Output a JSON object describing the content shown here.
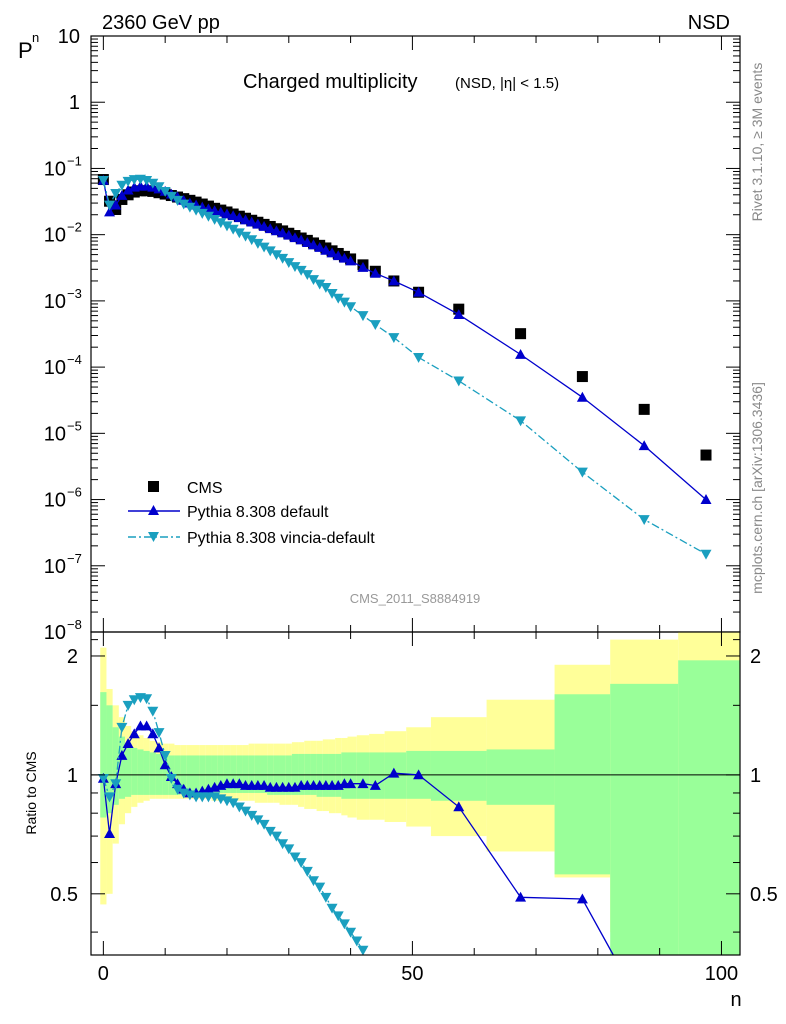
{
  "header": {
    "left": "2360 GeV pp",
    "right": "NSD"
  },
  "side_text": {
    "rivet": "Rivet 3.1.10, ≥ 3M events",
    "mcplots": "mcplots.cern.ch [arXiv:1306.3436]"
  },
  "watermark": "CMS_2011_S8884919",
  "chart_data": [
    {
      "type": "scatter",
      "title": "Charged multiplicity",
      "subtitle": "(NSD, |η| < 1.5)",
      "ylabel": "P",
      "ylabel_sub": "n",
      "y_scale": "log",
      "ylim": [
        1e-08,
        10
      ],
      "y_ticks": [
        {
          "v": 10,
          "t": "10"
        },
        {
          "v": 1,
          "t": "1"
        },
        {
          "v": 0.1,
          "t": "10",
          "e": "−1"
        },
        {
          "v": 0.01,
          "t": "10",
          "e": "−2"
        },
        {
          "v": 0.001,
          "t": "10",
          "e": "−3"
        },
        {
          "v": 0.0001,
          "t": "10",
          "e": "−4"
        },
        {
          "v": 1e-05,
          "t": "10",
          "e": "−5"
        },
        {
          "v": 1e-06,
          "t": "10",
          "e": "−6"
        },
        {
          "v": 1e-07,
          "t": "10",
          "e": "−7"
        },
        {
          "v": 1e-08,
          "t": "10",
          "e": "−8"
        }
      ],
      "xlim": [
        -2,
        103
      ],
      "legend_position": "bottom-left",
      "series": [
        {
          "name": "CMS",
          "marker": "square",
          "color": "#000000",
          "x": [
            0,
            1,
            2,
            3,
            4,
            5,
            6,
            7,
            8,
            9,
            10,
            11,
            12,
            13,
            14,
            15,
            16,
            17,
            18,
            19,
            20,
            21,
            22,
            23,
            24,
            25,
            26,
            27,
            28,
            29,
            30,
            31,
            32,
            33,
            34,
            35,
            36,
            37,
            38,
            39,
            40,
            42,
            44,
            47,
            51,
            57.5,
            67.5,
            77.5,
            87.5,
            97.5
          ],
          "y": [
            0.068,
            0.032,
            0.024,
            0.034,
            0.04,
            0.044,
            0.046,
            0.046,
            0.045,
            0.043,
            0.041,
            0.039,
            0.037,
            0.035,
            0.033,
            0.031,
            0.029,
            0.027,
            0.025,
            0.0235,
            0.022,
            0.0205,
            0.019,
            0.0177,
            0.0165,
            0.0154,
            0.0143,
            0.0133,
            0.0123,
            0.0114,
            0.0105,
            0.0097,
            0.0089,
            0.0082,
            0.0075,
            0.0069,
            0.0063,
            0.0057,
            0.0052,
            0.0047,
            0.0043,
            0.0035,
            0.0028,
            0.002,
            0.00135,
            0.00075,
            0.00032,
            7.2e-05,
            2.3e-05,
            4.7e-06
          ]
        },
        {
          "name": "Pythia 8.308 default",
          "marker": "triangle-up",
          "color": "#0000cc",
          "line": "solid",
          "x": [
            0,
            1,
            2,
            3,
            4,
            5,
            6,
            7,
            8,
            9,
            10,
            11,
            12,
            13,
            14,
            15,
            16,
            17,
            18,
            19,
            20,
            21,
            22,
            23,
            24,
            25,
            26,
            27,
            28,
            29,
            30,
            31,
            32,
            33,
            34,
            35,
            36,
            37,
            38,
            39,
            40,
            42,
            44,
            47,
            51,
            57.5,
            67.5,
            77.5,
            87.5,
            97.5
          ],
          "y": [
            0.066,
            0.022,
            0.028,
            0.039,
            0.047,
            0.052,
            0.054,
            0.054,
            0.052,
            0.049,
            0.045,
            0.041,
            0.037,
            0.033,
            0.03,
            0.028,
            0.026,
            0.0245,
            0.023,
            0.0218,
            0.0205,
            0.0193,
            0.018,
            0.0167,
            0.0155,
            0.0144,
            0.0133,
            0.0123,
            0.0114,
            0.0106,
            0.0098,
            0.009,
            0.0083,
            0.0076,
            0.007,
            0.0064,
            0.0058,
            0.0053,
            0.0048,
            0.0044,
            0.004,
            0.0032,
            0.0026,
            0.002,
            0.00135,
            0.00062,
            0.000155,
            3.5e-05,
            6.5e-06,
            1e-06
          ]
        },
        {
          "name": "Pythia 8.308 vincia-default",
          "marker": "triangle-down",
          "color": "#1a9fbf",
          "line": "dashdot",
          "x": [
            0,
            1,
            2,
            3,
            4,
            5,
            6,
            7,
            8,
            9,
            10,
            11,
            12,
            13,
            14,
            15,
            16,
            17,
            18,
            19,
            20,
            21,
            22,
            23,
            24,
            25,
            26,
            27,
            28,
            29,
            30,
            31,
            32,
            33,
            34,
            35,
            36,
            37,
            38,
            39,
            40,
            42,
            44,
            47,
            51,
            57.5,
            67.5,
            77.5,
            87.5,
            97.5
          ],
          "y": [
            0.066,
            0.028,
            0.042,
            0.056,
            0.064,
            0.068,
            0.069,
            0.066,
            0.06,
            0.053,
            0.045,
            0.038,
            0.033,
            0.029,
            0.026,
            0.0235,
            0.021,
            0.019,
            0.017,
            0.0152,
            0.0136,
            0.0121,
            0.0107,
            0.0095,
            0.0084,
            0.0074,
            0.0065,
            0.0057,
            0.005,
            0.0044,
            0.0038,
            0.0033,
            0.0029,
            0.0025,
            0.0021,
            0.0018,
            0.0016,
            0.0013,
            0.0011,
            0.00096,
            0.00082,
            0.0006,
            0.00044,
            0.00028,
            0.00014,
            6.2e-05,
            1.55e-05,
            2.6e-06,
            5e-07,
            1.5e-07
          ]
        }
      ]
    },
    {
      "type": "line",
      "ylabel": "Ratio to CMS",
      "xlabel": "n",
      "xlim": [
        -2,
        103
      ],
      "ylim": [
        0.35,
        2.3
      ],
      "x_ticks": [
        0,
        50,
        100
      ],
      "y_ticks": [
        0.5,
        1,
        2
      ],
      "reference_line": 1,
      "uncertainty_bands": {
        "x_edges": [
          -0.5,
          0.5,
          1.5,
          2.5,
          3.5,
          4.5,
          5.5,
          6.5,
          7.5,
          8.5,
          9.5,
          10.5,
          11.5,
          12.5,
          13.5,
          14.5,
          15.5,
          16.5,
          17.5,
          18.5,
          19.5,
          20.5,
          21.5,
          22.5,
          23.5,
          24.5,
          25.5,
          26.5,
          27.5,
          28.5,
          29.5,
          30.5,
          31.5,
          32.5,
          33.5,
          34.5,
          35.5,
          36.5,
          37.5,
          38.5,
          39.5,
          41,
          43,
          45.5,
          49,
          53,
          62,
          73,
          82,
          93,
          103
        ],
        "yellow_color": "#ffff99",
        "green_color": "#99ff99",
        "yellow_lo": [
          0.47,
          0.5,
          0.67,
          0.75,
          0.8,
          0.83,
          0.85,
          0.86,
          0.87,
          0.87,
          0.87,
          0.87,
          0.87,
          0.87,
          0.87,
          0.87,
          0.87,
          0.87,
          0.86,
          0.86,
          0.86,
          0.86,
          0.86,
          0.86,
          0.86,
          0.85,
          0.85,
          0.85,
          0.85,
          0.84,
          0.84,
          0.84,
          0.83,
          0.82,
          0.82,
          0.81,
          0.81,
          0.8,
          0.8,
          0.79,
          0.78,
          0.77,
          0.77,
          0.76,
          0.74,
          0.7,
          0.64,
          0.55,
          0.4,
          0.25
        ],
        "yellow_hi": [
          2.1,
          1.65,
          1.5,
          1.4,
          1.33,
          1.29,
          1.26,
          1.24,
          1.22,
          1.21,
          1.2,
          1.2,
          1.19,
          1.19,
          1.19,
          1.19,
          1.19,
          1.19,
          1.19,
          1.19,
          1.19,
          1.19,
          1.19,
          1.19,
          1.2,
          1.2,
          1.2,
          1.2,
          1.2,
          1.2,
          1.2,
          1.21,
          1.21,
          1.22,
          1.22,
          1.22,
          1.23,
          1.23,
          1.24,
          1.24,
          1.25,
          1.26,
          1.27,
          1.29,
          1.32,
          1.4,
          1.55,
          1.9,
          2.2,
          2.5
        ],
        "green_lo": [
          0.78,
          0.8,
          0.84,
          0.87,
          0.88,
          0.89,
          0.89,
          0.89,
          0.89,
          0.89,
          0.89,
          0.89,
          0.89,
          0.9,
          0.9,
          0.9,
          0.9,
          0.9,
          0.9,
          0.9,
          0.9,
          0.9,
          0.9,
          0.9,
          0.9,
          0.9,
          0.9,
          0.89,
          0.89,
          0.89,
          0.89,
          0.89,
          0.89,
          0.89,
          0.89,
          0.88,
          0.88,
          0.88,
          0.88,
          0.87,
          0.87,
          0.87,
          0.87,
          0.87,
          0.87,
          0.86,
          0.84,
          0.56,
          0.3,
          0.25
        ],
        "green_hi": [
          1.62,
          1.5,
          1.32,
          1.25,
          1.2,
          1.17,
          1.16,
          1.15,
          1.14,
          1.13,
          1.12,
          1.12,
          1.12,
          1.12,
          1.12,
          1.12,
          1.12,
          1.12,
          1.12,
          1.12,
          1.12,
          1.12,
          1.12,
          1.12,
          1.12,
          1.12,
          1.12,
          1.12,
          1.12,
          1.12,
          1.12,
          1.13,
          1.13,
          1.13,
          1.13,
          1.13,
          1.13,
          1.13,
          1.13,
          1.14,
          1.14,
          1.14,
          1.14,
          1.14,
          1.15,
          1.15,
          1.16,
          1.6,
          1.7,
          1.95
        ]
      },
      "series": [
        {
          "name": "Pythia 8.308 default",
          "marker": "triangle-up",
          "color": "#0000cc",
          "line": "solid",
          "x": [
            0,
            1,
            2,
            3,
            4,
            5,
            6,
            7,
            8,
            9,
            10,
            11,
            12,
            13,
            14,
            15,
            16,
            17,
            18,
            19,
            20,
            21,
            22,
            23,
            24,
            25,
            26,
            27,
            28,
            29,
            30,
            31,
            32,
            33,
            34,
            35,
            36,
            37,
            38,
            39,
            40,
            42,
            44,
            47,
            51,
            57.5,
            67.5,
            77.5,
            82.5
          ],
          "y": [
            0.98,
            0.71,
            0.95,
            1.12,
            1.2,
            1.27,
            1.33,
            1.33,
            1.27,
            1.17,
            1.06,
            0.99,
            0.95,
            0.92,
            0.9,
            0.9,
            0.91,
            0.92,
            0.93,
            0.94,
            0.95,
            0.95,
            0.95,
            0.94,
            0.94,
            0.94,
            0.94,
            0.93,
            0.93,
            0.93,
            0.93,
            0.93,
            0.94,
            0.94,
            0.94,
            0.94,
            0.94,
            0.94,
            0.94,
            0.95,
            0.95,
            0.95,
            0.94,
            1.01,
            1.0,
            0.83,
            0.49,
            0.485,
            0.35
          ]
        },
        {
          "name": "Pythia 8.308 vincia-default",
          "marker": "triangle-down",
          "color": "#1a9fbf",
          "line": "dashdot",
          "x": [
            0,
            1,
            2,
            3,
            4,
            5,
            6,
            7,
            8,
            9,
            10,
            11,
            12,
            13,
            14,
            15,
            16,
            17,
            18,
            19,
            20,
            21,
            22,
            23,
            24,
            25,
            26,
            27,
            28,
            29,
            30,
            31,
            32,
            33,
            34,
            35,
            36,
            37,
            38,
            39,
            40,
            41,
            42
          ],
          "y": [
            0.98,
            0.88,
            0.95,
            1.32,
            1.5,
            1.55,
            1.57,
            1.56,
            1.45,
            1.28,
            1.12,
            0.98,
            0.92,
            0.9,
            0.89,
            0.88,
            0.88,
            0.88,
            0.88,
            0.87,
            0.86,
            0.85,
            0.83,
            0.81,
            0.79,
            0.77,
            0.75,
            0.72,
            0.7,
            0.67,
            0.65,
            0.62,
            0.6,
            0.57,
            0.54,
            0.52,
            0.49,
            0.46,
            0.44,
            0.42,
            0.4,
            0.38,
            0.36
          ]
        }
      ]
    }
  ]
}
